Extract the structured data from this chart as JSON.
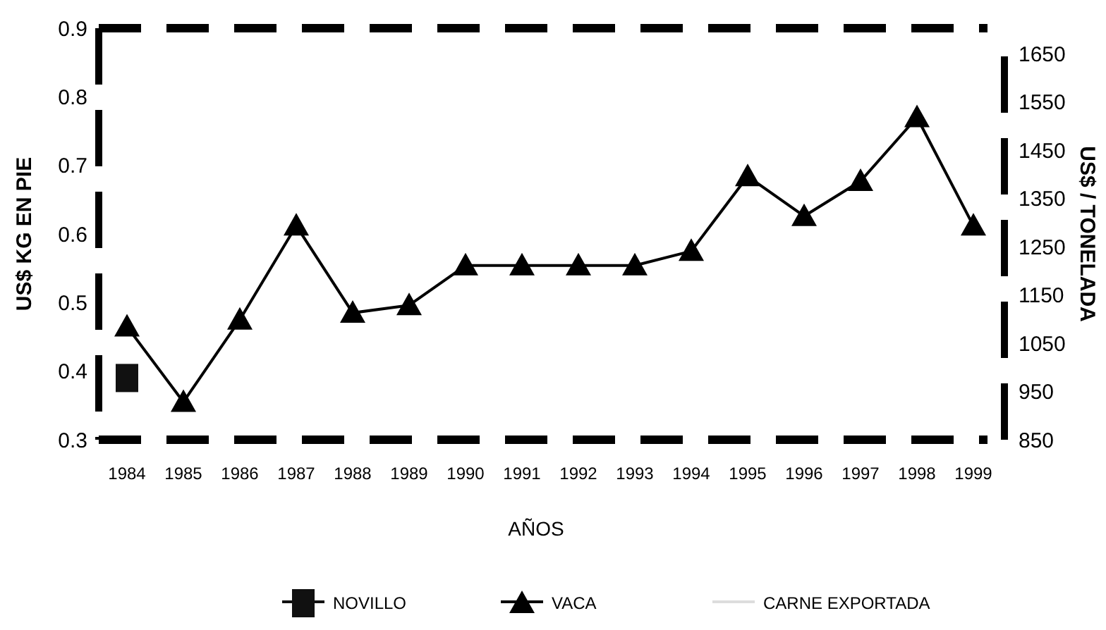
{
  "chart_data": {
    "type": "line",
    "xlabel": "AÑOS",
    "ylabel": "US$ KG EN PIE",
    "y2label": "US$ / TONELADA",
    "categories": [
      "1984",
      "1985",
      "1986",
      "1987",
      "1988",
      "1989",
      "1990",
      "1991",
      "1992",
      "1993",
      "1994",
      "1995",
      "1996",
      "1997",
      "1998",
      "1999"
    ],
    "series": [
      {
        "name": "NOVILLO",
        "color": "#111111",
        "marker": "square",
        "values": [
          0.39,
          null,
          null,
          null,
          null,
          null,
          null,
          null,
          null,
          null,
          null,
          null,
          null,
          null,
          null,
          null
        ]
      },
      {
        "name": "VACA",
        "color": "#000000",
        "marker": "triangle",
        "values": [
          0.465,
          0.355,
          0.475,
          0.612,
          0.485,
          0.496,
          0.554,
          0.554,
          0.554,
          0.554,
          0.575,
          0.684,
          0.626,
          0.677,
          0.77,
          0.612
        ]
      },
      {
        "name": "CARNE EXPORTADA",
        "color": "#dddddd",
        "marker": "none",
        "values": [
          null,
          null,
          null,
          null,
          null,
          null,
          null,
          null,
          null,
          null,
          null,
          null,
          null,
          null,
          null,
          null
        ]
      }
    ],
    "ylim": [
      0.3,
      0.9
    ],
    "yticks": [
      {
        "value": 0.3,
        "label": "0.3"
      },
      {
        "value": 0.4,
        "label": "0.4"
      },
      {
        "value": 0.5,
        "label": "0.5"
      },
      {
        "value": 0.6,
        "label": "0.6"
      },
      {
        "value": 0.7,
        "label": "0.7"
      },
      {
        "value": 0.8,
        "label": "0.8"
      },
      {
        "value": 0.9,
        "label": "0.9"
      }
    ],
    "y2lim": [
      850,
      1703
    ],
    "y2ticks": [
      850,
      950,
      1050,
      1150,
      1250,
      1350,
      1450,
      1550,
      1650
    ],
    "legend": "bottom",
    "grid": false,
    "line_style": "solid"
  }
}
